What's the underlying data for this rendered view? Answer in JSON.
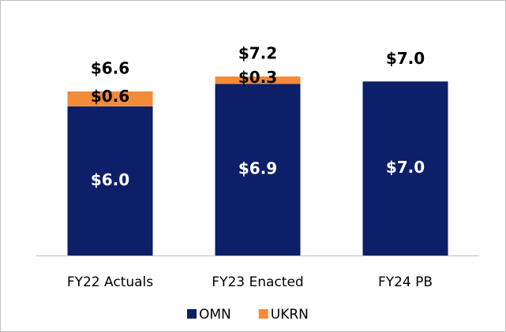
{
  "chart_data": {
    "type": "stacked_bar",
    "categories": [
      "FY22 Actuals",
      "FY23 Enacted",
      "FY24 PB"
    ],
    "series": [
      {
        "name": "OMN",
        "color": "#0c1f68",
        "values": [
          6.0,
          6.9,
          7.0
        ],
        "value_labels": [
          "$6.0",
          "$6.9",
          "$7.0"
        ]
      },
      {
        "name": "UKRN",
        "color": "#f28b3a",
        "values": [
          0.6,
          0.3,
          null
        ],
        "value_labels": [
          "$0.6",
          "$0.3",
          null
        ]
      }
    ],
    "totals": [
      6.6,
      7.2,
      7.0
    ],
    "total_labels": [
      "$6.6",
      "$7.2",
      "$7.0"
    ],
    "legend": "bottom"
  }
}
